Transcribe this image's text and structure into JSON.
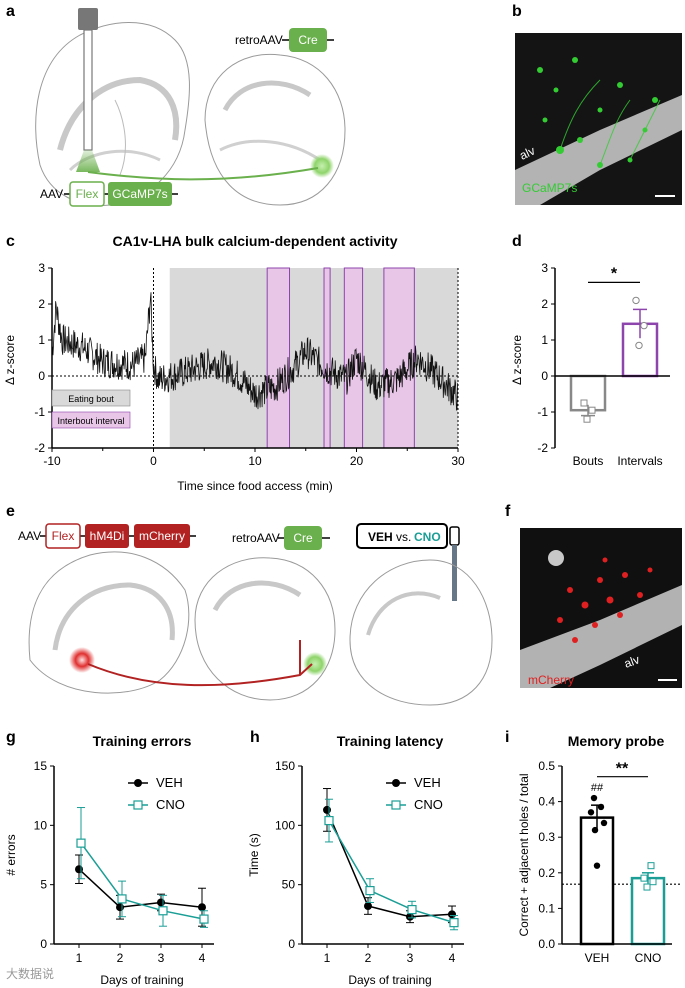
{
  "panels": {
    "a": "a",
    "b": "b",
    "c": "c",
    "d": "d",
    "e": "e",
    "f": "f",
    "g": "g",
    "h": "h",
    "i": "i"
  },
  "colors": {
    "green": "#6ab04c",
    "purple": "#8e44ad",
    "purple_fill": "#e8c6e8",
    "teal": "#1a9e96",
    "red": "#b22222",
    "gray_fill": "#d9d9d9"
  },
  "panel_a": {
    "aav": "AAV",
    "flex": "Flex",
    "gcamp": "GCaMP7s",
    "retro": "retroAAV",
    "cre": "Cre"
  },
  "panel_b": {
    "alv": "alv",
    "gcamp": "GCaMP7s"
  },
  "panel_e": {
    "aav": "AAV",
    "flex": "Flex",
    "hm4di": "hM4Di",
    "mcherry": "mCherry",
    "retro": "retroAAV",
    "cre": "Cre",
    "veh": "VEH",
    "vs": "vs.",
    "cno": "CNO"
  },
  "panel_f": {
    "alv": "alv",
    "mcherry": "mCherry"
  },
  "watermark": "大数据说",
  "chart_data": [
    {
      "id": "c",
      "type": "line",
      "title": "CA1v-LHA bulk calcium-dependent activity",
      "xlabel": "Time since food access (min)",
      "ylabel": "Δ z-score",
      "xlim": [
        -10,
        30
      ],
      "ylim": [
        -2,
        3
      ],
      "xticks": [
        "-10",
        "0",
        "10",
        "20",
        "30"
      ],
      "yticks": [
        "-2",
        "-1",
        "0",
        "1",
        "2",
        "3"
      ],
      "legend": [
        "Eating bout",
        "Interbout interval"
      ],
      "eating_bout": [
        1.6,
        30
      ],
      "interbout_intervals": [
        [
          11.2,
          13.4
        ],
        [
          16.8,
          17.4
        ],
        [
          18.8,
          20.6
        ],
        [
          22.7,
          25.7
        ]
      ]
    },
    {
      "id": "d",
      "type": "bar",
      "ylabel": "Δ z-score",
      "ylim": [
        -2,
        3
      ],
      "yticks": [
        "-2",
        "-1",
        "0",
        "1",
        "2",
        "3"
      ],
      "categories": [
        "Bouts",
        "Intervals"
      ],
      "values": [
        -0.95,
        1.45
      ],
      "sem": [
        0.15,
        0.4
      ],
      "points": [
        [
          -0.75,
          -0.95,
          -1.2
        ],
        [
          2.1,
          1.4,
          0.85
        ]
      ],
      "significance": "*"
    },
    {
      "id": "g",
      "type": "line",
      "title": "Training errors",
      "xlabel": "Days of training",
      "ylabel": "# errors",
      "ylim": [
        0,
        15
      ],
      "categories": [
        "1",
        "2",
        "3",
        "4"
      ],
      "yticks": [
        "0",
        "5",
        "10",
        "15"
      ],
      "series": [
        {
          "name": "VEH",
          "values": [
            6.3,
            3.1,
            3.5,
            3.1
          ],
          "err": [
            1.2,
            1.0,
            0.7,
            1.6
          ]
        },
        {
          "name": "CNO",
          "values": [
            8.5,
            3.8,
            2.8,
            2.1
          ],
          "err": [
            3.0,
            1.5,
            1.3,
            0.7
          ]
        }
      ]
    },
    {
      "id": "h",
      "type": "line",
      "title": "Training latency",
      "xlabel": "Days of training",
      "ylabel": "Time (s)",
      "ylim": [
        0,
        150
      ],
      "categories": [
        "1",
        "2",
        "3",
        "4"
      ],
      "yticks": [
        "0",
        "50",
        "100",
        "150"
      ],
      "series": [
        {
          "name": "VEH",
          "values": [
            113,
            32,
            23,
            25
          ],
          "err": [
            18,
            7,
            5,
            7
          ]
        },
        {
          "name": "CNO",
          "values": [
            104,
            45,
            29,
            18
          ],
          "err": [
            18,
            10,
            7,
            6
          ]
        }
      ]
    },
    {
      "id": "i",
      "type": "bar",
      "title": "Memory probe",
      "ylabel": "Correct + adjacent holes / total",
      "ylim": [
        0,
        0.5
      ],
      "yticks": [
        "0.0",
        "0.1",
        "0.2",
        "0.3",
        "0.4",
        "0.5"
      ],
      "categories": [
        "VEH",
        "CNO"
      ],
      "values": [
        0.355,
        0.185
      ],
      "sem": [
        0.035,
        0.015
      ],
      "chance": 0.168,
      "points": [
        [
          0.41,
          0.385,
          0.37,
          0.34,
          0.32,
          0.22
        ],
        [
          0.22,
          0.185,
          0.175,
          0.16
        ]
      ],
      "significance": "**",
      "annotation": "##"
    }
  ]
}
